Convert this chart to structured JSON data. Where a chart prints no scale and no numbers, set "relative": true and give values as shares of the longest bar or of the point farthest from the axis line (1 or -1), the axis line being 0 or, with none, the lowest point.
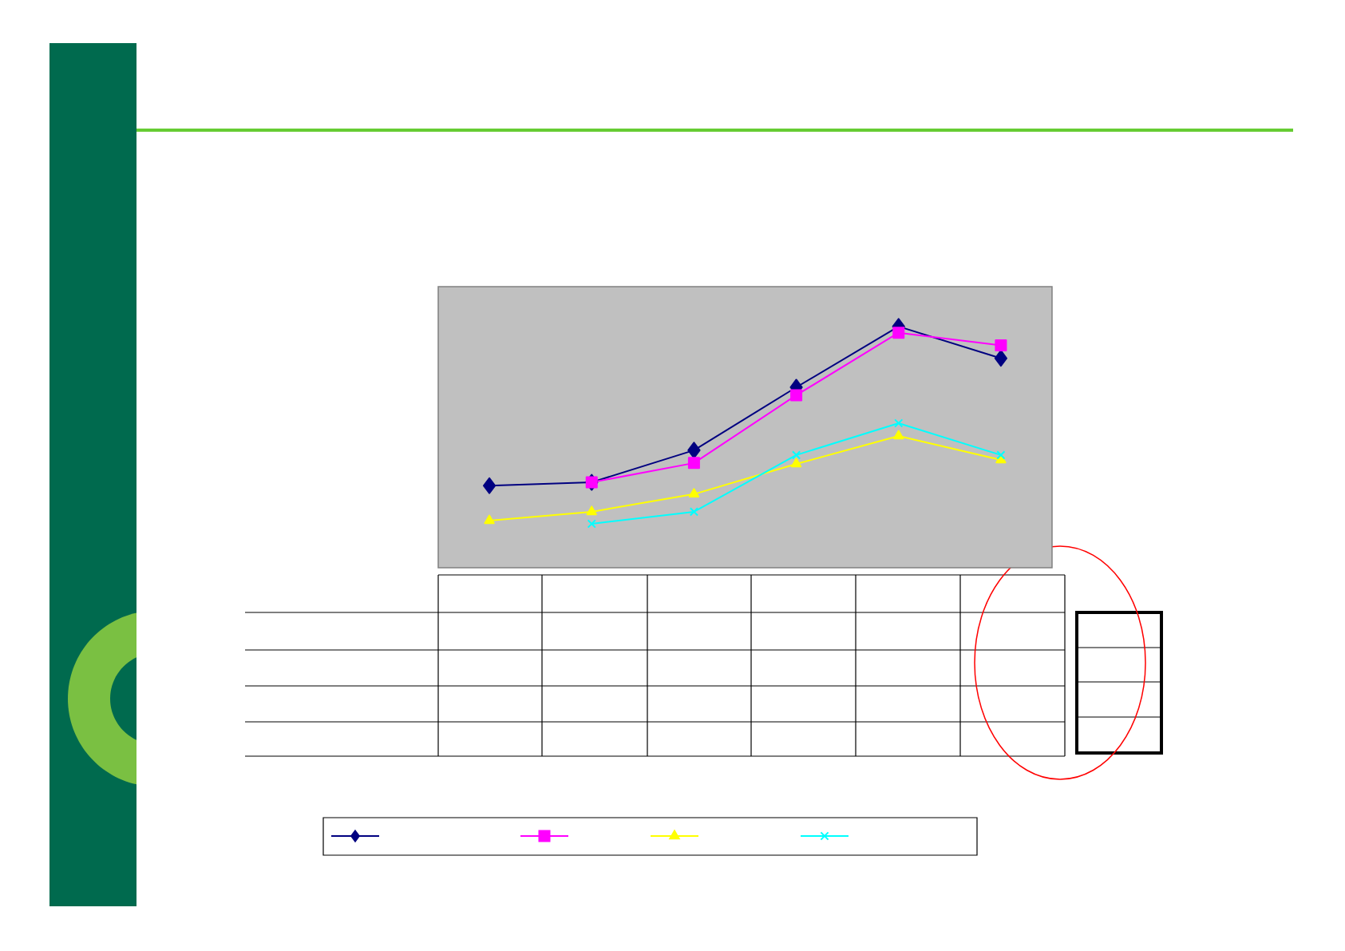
{
  "chart_data": {
    "type": "line",
    "relative": true,
    "categories": [
      null,
      null,
      null,
      null,
      null,
      null
    ],
    "series": [
      {
        "color": "#000080",
        "marker": "diamond",
        "values": [
          0.34,
          0.354,
          0.487,
          0.748,
          1,
          0.868
        ]
      },
      {
        "color": "#ff00ff",
        "marker": "square",
        "values": [
          null,
          0.354,
          0.434,
          0.715,
          0.974,
          0.922
        ]
      },
      {
        "color": "#ffff00",
        "marker": "triangle",
        "values": [
          0.195,
          0.232,
          0.305,
          0.43,
          0.546,
          0.447
        ]
      },
      {
        "color": "#00ffff",
        "marker": "cross",
        "values": [
          null,
          0.182,
          0.232,
          0.467,
          0.599,
          0.467
        ]
      }
    ],
    "line_style": "solid"
  }
}
